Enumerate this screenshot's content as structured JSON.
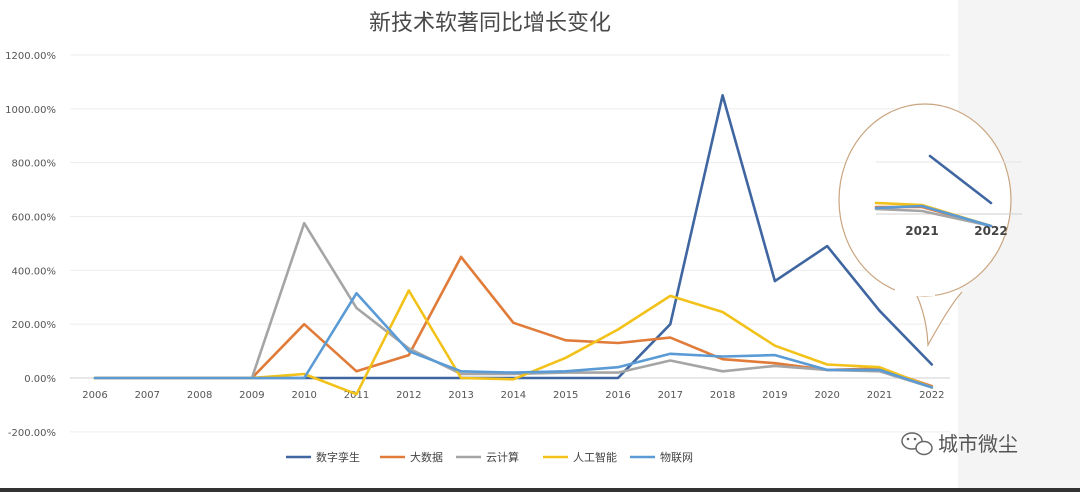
{
  "chart_data": {
    "type": "line",
    "title": "新技术软著同比增长变化",
    "xlabel": "",
    "ylabel": "",
    "categories": [
      "2006",
      "2007",
      "2008",
      "2009",
      "2010",
      "2011",
      "2012",
      "2013",
      "2014",
      "2015",
      "2016",
      "2017",
      "2018",
      "2019",
      "2020",
      "2021",
      "2022"
    ],
    "y_ticks": [
      "1200.00%",
      "1000.00%",
      "800.00%",
      "600.00%",
      "400.00%",
      "200.00%",
      "0.00%",
      "-200.00%"
    ],
    "ylim": [
      -200,
      1200
    ],
    "grid": true,
    "legend_position": "bottom",
    "series": [
      {
        "name": "数字孪生",
        "color": "#3f66a1",
        "values": [
          0,
          0,
          0,
          0,
          0,
          0,
          0,
          0,
          0,
          0,
          0,
          200,
          1050,
          360,
          490,
          250,
          50
        ]
      },
      {
        "name": "大数据",
        "color": "#e07b39",
        "values": [
          0,
          0,
          0,
          0,
          200,
          25,
          85,
          450,
          205,
          140,
          130,
          150,
          70,
          55,
          30,
          35,
          -30
        ]
      },
      {
        "name": "云计算",
        "color": "#a5a5a5",
        "values": [
          0,
          0,
          0,
          0,
          575,
          260,
          110,
          15,
          15,
          20,
          20,
          65,
          25,
          45,
          30,
          25,
          -35
        ]
      },
      {
        "name": "人工智能",
        "color": "#f2c21b",
        "values": [
          0,
          0,
          0,
          0,
          15,
          -60,
          325,
          0,
          -5,
          75,
          180,
          305,
          245,
          120,
          50,
          40,
          -35
        ]
      },
      {
        "name": "物联网",
        "color": "#5b9bd5",
        "values": [
          0,
          0,
          0,
          0,
          0,
          315,
          100,
          25,
          20,
          25,
          40,
          90,
          80,
          85,
          30,
          30,
          -35
        ]
      }
    ],
    "callout": {
      "categories": [
        "2021",
        "2022"
      ],
      "note": "zoomed view of 2021-2022"
    }
  },
  "watermark": {
    "text": "城市微尘",
    "icon": "wechat-icon"
  }
}
